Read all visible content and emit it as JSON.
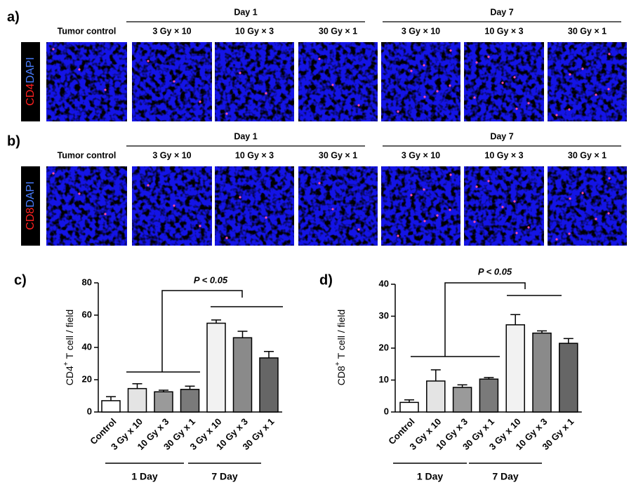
{
  "panels": [
    {
      "label": "a)",
      "groups": [
        "Day 1",
        "Day 7"
      ],
      "headers": [
        "Tumor control",
        "3 Gy × 10",
        "10 Gy × 3",
        "30 Gy × 1",
        "3 Gy × 10",
        "10 Gy × 3",
        "30 Gy × 1"
      ],
      "stain": [
        "CD4",
        "DAPI"
      ]
    },
    {
      "label": "b)",
      "groups": [
        "Day 1",
        "Day 7"
      ],
      "headers": [
        "Tumor control",
        "3 Gy × 10",
        "10 Gy × 3",
        "30 Gy × 1",
        "3 Gy × 10",
        "10 Gy × 3",
        "30 Gy × 1"
      ],
      "stain": [
        "CD8",
        "DAPI"
      ]
    }
  ],
  "chart_data": [
    {
      "type": "bar",
      "panel_label": "c)",
      "categories": [
        "Control",
        "3 Gy x 10",
        "10 Gy x 3",
        "30 Gy x 1",
        "3 Gy x 10",
        "10 Gy x 3",
        "30 Gy x 1"
      ],
      "values": [
        7,
        14.5,
        12.5,
        14,
        55,
        46,
        33.5
      ],
      "errors": [
        2.5,
        3,
        1,
        2,
        2,
        4,
        4
      ],
      "colors": [
        "#ffffff",
        "#e4e4e4",
        "#9a9a9a",
        "#7a7a7a",
        "#f2f2f2",
        "#8a8a8a",
        "#666666"
      ],
      "ylim": [
        0,
        80
      ],
      "yticks": [
        0,
        20,
        40,
        60,
        80
      ],
      "y_label": [
        "CD4",
        "+",
        "T cell / field"
      ],
      "groups": [
        "1 Day",
        "7 Day"
      ],
      "annotation": "P < 0.05"
    },
    {
      "type": "bar",
      "panel_label": "d)",
      "categories": [
        "Control",
        "3 Gy x 10",
        "10 Gy x 3",
        "30 Gy x 1",
        "3 Gy x 10",
        "10 Gy x 3",
        "30 Gy x 1"
      ],
      "values": [
        3,
        9.7,
        7.7,
        10.3,
        27.3,
        24.7,
        21.5
      ],
      "errors": [
        0.8,
        3.5,
        0.8,
        0.5,
        3.2,
        0.7,
        1.5
      ],
      "colors": [
        "#ffffff",
        "#e4e4e4",
        "#9a9a9a",
        "#7a7a7a",
        "#f2f2f2",
        "#8a8a8a",
        "#666666"
      ],
      "ylim": [
        0,
        40
      ],
      "yticks": [
        0,
        10,
        20,
        30,
        40
      ],
      "y_label": [
        "CD8",
        "+",
        "T cell / field"
      ],
      "groups": [
        "1 Day",
        "7 Day"
      ],
      "annotation": "P < 0.05"
    }
  ]
}
